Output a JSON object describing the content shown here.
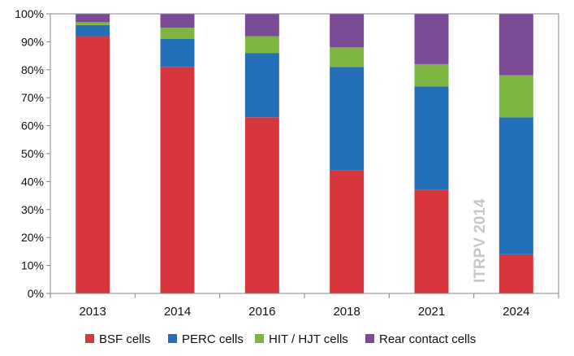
{
  "chart_data": {
    "type": "bar",
    "stacked": true,
    "percent": true,
    "categories": [
      "2013",
      "2014",
      "2016",
      "2018",
      "2021",
      "2024"
    ],
    "series": [
      {
        "name": "BSF cells",
        "color": "#d7373c",
        "values": [
          92,
          81,
          63,
          44,
          37,
          14
        ]
      },
      {
        "name": "PERC cells",
        "color": "#2470b8",
        "values": [
          4,
          10,
          23,
          37,
          37,
          49
        ]
      },
      {
        "name": "HIT / HJT cells",
        "color": "#7db741",
        "values": [
          1,
          4,
          6,
          7,
          8,
          15
        ]
      },
      {
        "name": "Rear contact cells",
        "color": "#7c4b98",
        "values": [
          3,
          5,
          8,
          12,
          18,
          22
        ]
      }
    ],
    "ylim": [
      0,
      100
    ],
    "yticks": [
      "0%",
      "10%",
      "20%",
      "30%",
      "40%",
      "50%",
      "60%",
      "70%",
      "80%",
      "90%",
      "100%"
    ],
    "grid": false,
    "legend_position": "bottom",
    "watermark": "ITRPV 2014"
  }
}
